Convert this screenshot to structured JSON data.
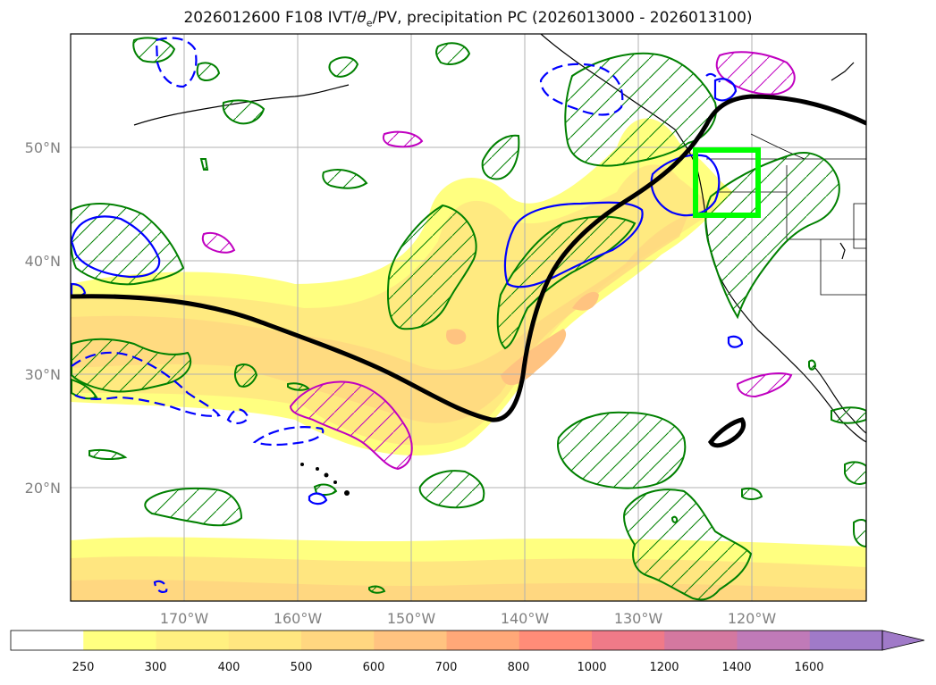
{
  "title": {
    "main": "2026012600 F108 IVT/",
    "theta": "θ",
    "sub": "e",
    "rest": "/PV, precipitation PC (2026013000 - 2026013100)"
  },
  "map": {
    "lon_range": [
      -180,
      -110
    ],
    "lat_range": [
      10,
      60
    ],
    "lat_labels": [
      "20°N",
      "30°N",
      "40°N",
      "50°N"
    ],
    "lon_labels": [
      "170°W",
      "160°W",
      "150°W",
      "140°W",
      "130°W",
      "120°W"
    ],
    "gridlines": true
  },
  "legend": {
    "levels": [
      "250",
      "300",
      "400",
      "500",
      "600",
      "700",
      "800",
      "1000",
      "1200",
      "1400",
      "1600"
    ],
    "colors": [
      "#ffffff",
      "#ffff80",
      "#fff080",
      "#ffe680",
      "#ffd780",
      "#ffc380",
      "#ffa878",
      "#ff8c78",
      "#f07a88",
      "#d478a0",
      "#c07ab8",
      "#a07ac8"
    ],
    "extend": "max"
  },
  "colors": {
    "ivt_shading": "#ffe87a",
    "precip_pc_positive": "#008000",
    "pv_contour": "#000000",
    "theta_e_contour": "#0000ff",
    "magenta_contour": "#c000c0",
    "region_box": "#00ff00"
  }
}
